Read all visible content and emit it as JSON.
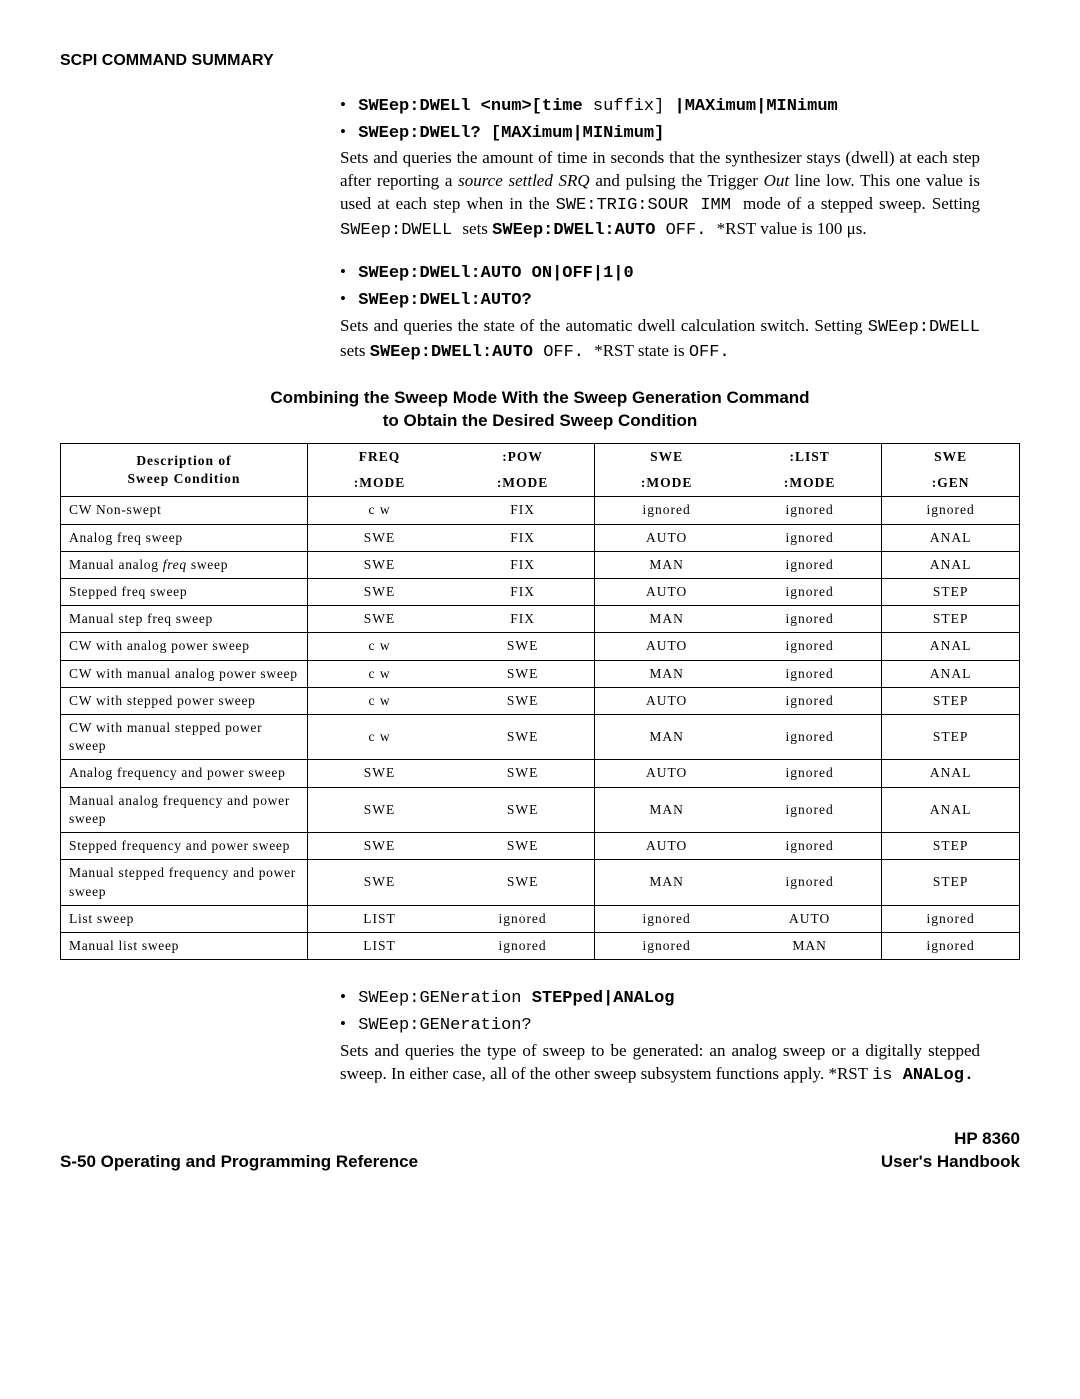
{
  "header": {
    "title": "SCPI COMMAND SUMMARY"
  },
  "block1": {
    "bullet1_cmd": "SWEep:DWELl <num>[time ",
    "bullet1_suffix": "suffix] ",
    "bullet1_tail": "|MAXimum|MINimum",
    "bullet2_cmd": "SWEep:DWELl? [MAXimum|MINimum]",
    "p1_a": "Sets and queries the amount of time in seconds that the synthesizer stays (dwell) at each step after reporting a ",
    "p1_b": "source settled SRQ",
    "p1_c": " and pulsing the Trigger ",
    "p1_d": "Out",
    "p1_e": " line low. This one value is used at each step when in the ",
    "p1_f": "SWE:TRIG:SOUR IMM ",
    "p1_g": "mode of a stepped sweep. Setting ",
    "p1_h": "SWEep:DWELL ",
    "p1_i": "sets ",
    "p1_j": "SWEep:DWELl:AUTO ",
    "p1_k": "OFF. ",
    "p1_l": "*RST value is 100 μs."
  },
  "block2": {
    "bullet1_cmd": "SWEep:DWELl:AUTO ON|OFF|1|0",
    "bullet2_cmd": "SWEep:DWELl:AUTO?",
    "p1_a": "Sets and queries the state of the automatic dwell calculation switch. Setting ",
    "p1_b": "SWEep:DWELL ",
    "p1_c": "sets ",
    "p1_d": "SWEep:DWELl:AUTO ",
    "p1_e": "OFF. ",
    "p1_f": "*RST state is ",
    "p1_g": "OFF."
  },
  "table": {
    "title_l1": "Combining the Sweep Mode With the Sweep Generation Command",
    "title_l2": "to Obtain the Desired Sweep Condition",
    "hdr_desc1": "Description of",
    "hdr_desc2": "Sweep Condition",
    "hdr_freq": "FREQ",
    "hdr_pow": ":POW",
    "hdr_swe": "SWE",
    "hdr_list": ":LIST",
    "hdr_swe2": "SWE",
    "hdr_mode": ":MODE",
    "hdr_gen": ":GEN",
    "rows": [
      {
        "d": "CW Non-swept",
        "c": [
          "c w",
          "FIX",
          "ignored",
          "ignored",
          "ignored"
        ]
      },
      {
        "d": "Analog freq sweep",
        "c": [
          "SWE",
          "FIX",
          "AUTO",
          "ignored",
          "ANAL"
        ]
      },
      {
        "d": "Manual analog freq sweep",
        "c": [
          "SWE",
          "FIX",
          "MAN",
          "ignored",
          "ANAL"
        ]
      },
      {
        "d": "Stepped freq sweep",
        "c": [
          "SWE",
          "FIX",
          "AUTO",
          "ignored",
          "STEP"
        ]
      },
      {
        "d": "Manual step freq sweep",
        "c": [
          "SWE",
          "FIX",
          "MAN",
          "ignored",
          "STEP"
        ]
      },
      {
        "d": "CW with analog power sweep",
        "c": [
          "c w",
          "SWE",
          "AUTO",
          "ignored",
          "ANAL"
        ]
      },
      {
        "d": "CW with manual analog power sweep",
        "c": [
          "c w",
          "SWE",
          "MAN",
          "ignored",
          "ANAL"
        ]
      },
      {
        "d": "CW with stepped power sweep",
        "c": [
          "c w",
          "SWE",
          "AUTO",
          "ignored",
          "STEP"
        ]
      },
      {
        "d": "CW with manual stepped power sweep",
        "c": [
          "c w",
          "SWE",
          "MAN",
          "ignored",
          "STEP"
        ]
      },
      {
        "d": "Analog frequency and power sweep",
        "c": [
          "SWE",
          "SWE",
          "AUTO",
          "ignored",
          "ANAL"
        ]
      },
      {
        "d": "Manual analog frequency and power sweep",
        "c": [
          "SWE",
          "SWE",
          "MAN",
          "ignored",
          "ANAL"
        ]
      },
      {
        "d": "Stepped frequency and power sweep",
        "c": [
          "SWE",
          "SWE",
          "AUTO",
          "ignored",
          "STEP"
        ]
      },
      {
        "d": "Manual stepped frequency and power sweep",
        "c": [
          "SWE",
          "SWE",
          "MAN",
          "ignored",
          "STEP"
        ]
      },
      {
        "d": "List sweep",
        "c": [
          "LIST",
          "ignored",
          "ignored",
          "AUTO",
          "ignored"
        ]
      },
      {
        "d": "Manual list sweep",
        "c": [
          "LIST",
          "ignored",
          "ignored",
          "MAN",
          "ignored"
        ]
      }
    ]
  },
  "block3": {
    "bullet1_a": "SWEep:GENeration ",
    "bullet1_b": "STEPped|ANALog",
    "bullet2": "SWEep:GENeration?",
    "p1_a": "Sets and queries the type of sweep to be generated: an analog sweep or a digitally stepped sweep. In either case, all of the other sweep subsystem functions apply. *RST ",
    "p1_b": "is ",
    "p1_c": "ANALog."
  },
  "footer": {
    "left_a": "S-50 ",
    "left_b": "Operating and Programming Reference",
    "right_a": "HP 8360",
    "right_b": "User's Handbook"
  }
}
